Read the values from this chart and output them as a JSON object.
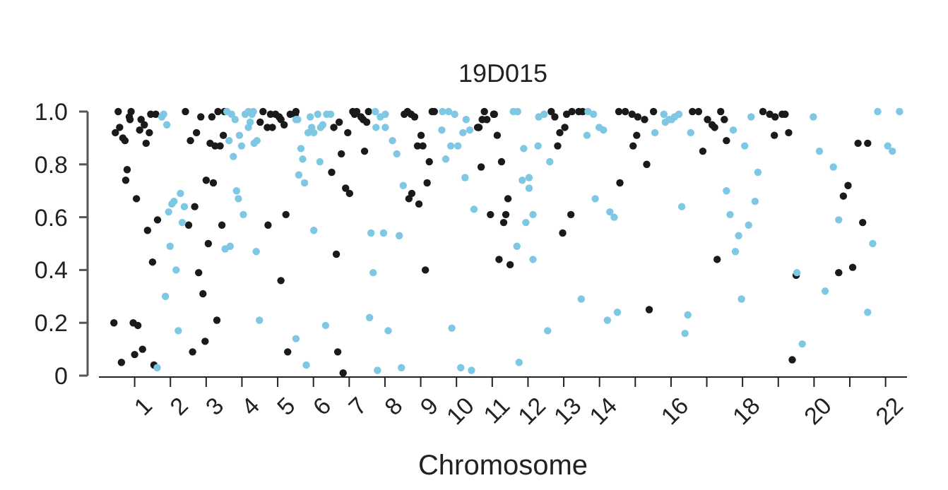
{
  "chart_data": {
    "type": "scatter",
    "title": "19D015",
    "xlabel": "Chromosome",
    "xlim": [
      0,
      22.6
    ],
    "ylim": [
      0,
      1
    ],
    "xticks": [
      1,
      2,
      3,
      4,
      5,
      6,
      7,
      8,
      9,
      10,
      11,
      12,
      13,
      14,
      {
        "value": 15,
        "label": null
      },
      16,
      {
        "value": 17,
        "label": null
      },
      18,
      {
        "value": 19,
        "label": null
      },
      20,
      {
        "value": 21,
        "label": null
      },
      22
    ],
    "yticks": [
      0,
      0.2,
      0.4,
      0.6,
      0.8,
      {
        "value": 1,
        "label": "1.0"
      }
    ],
    "grid": false,
    "marker": "circle",
    "series": [
      {
        "color": "#1a1a1a",
        "x": [
          0.54,
          0.46,
          0.58,
          0.67,
          0.73,
          0.85,
          0.9,
          0.87,
          1.18,
          1.27,
          1.14,
          1.32,
          1.41,
          1.45,
          1.59,
          0.79,
          0.75,
          1.05,
          0.42,
          0.63,
          0.96,
          1.09,
          1.0,
          1.22,
          1.5,
          1.36,
          1.64,
          1.54,
          2.42,
          2.56,
          2.73,
          2.85,
          3.0,
          3.2,
          3.16,
          3.33,
          3.11,
          3.25,
          3.39,
          3.48,
          3.51,
          2.68,
          2.51,
          3.06,
          2.79,
          2.91,
          3.3,
          2.62,
          2.97,
          3.44,
          4.59,
          4.51,
          4.71,
          4.85,
          4.8,
          4.94,
          5.04,
          5.09,
          5.18,
          5.35,
          4.73,
          5.23,
          5.09,
          5.28,
          5.49,
          5.51,
          6.57,
          6.72,
          6.96,
          6.78,
          6.51,
          6.9,
          7.01,
          6.64,
          6.68,
          6.83,
          7.1,
          7.15,
          7.21,
          7.33,
          7.39,
          7.49,
          7.54,
          7.43,
          8.54,
          8.63,
          8.73,
          8.83,
          9.01,
          8.91,
          9.06,
          9.24,
          9.18,
          8.75,
          8.67,
          8.95,
          9.13,
          9.32,
          9.38,
          10.78,
          10.85,
          11.04,
          11.06,
          10.72,
          10.59,
          10.63,
          11.14,
          11.26,
          10.69,
          11.44,
          10.95,
          11.38,
          11.32,
          11.19,
          11.5,
          12.65,
          12.75,
          13.08,
          13.23,
          13.42,
          13.53,
          13.03,
          12.89,
          12.83,
          13.2,
          12.97,
          14.54,
          14.72,
          14.91,
          15.07,
          15.26,
          15.04,
          14.94,
          15.32,
          14.57,
          15.51,
          16.6,
          16.77,
          17.02,
          17.15,
          17.22,
          17.39,
          17.49,
          17.55,
          16.89,
          17.29,
          15.39,
          18.57,
          18.76,
          18.91,
          19.11,
          19.19,
          18.89,
          19.29,
          21.23,
          21.5,
          20.95,
          20.82,
          21.36,
          20.69,
          21.08,
          19.5,
          19.39
        ],
        "values": [
          1,
          0.92,
          0.94,
          0.9,
          0.89,
          0.98,
          1,
          0.97,
          0.97,
          0.95,
          0.93,
          0.88,
          0.92,
          0.99,
          0.99,
          0.78,
          0.74,
          0.67,
          0.2,
          0.05,
          0.2,
          0.19,
          0.08,
          0.1,
          0.43,
          0.55,
          0.59,
          0.04,
          1,
          0.89,
          0.92,
          0.98,
          0.74,
          0.73,
          0.98,
          1,
          0.88,
          0.87,
          0.87,
          0.91,
          1,
          0.64,
          0.57,
          0.5,
          0.39,
          0.31,
          0.21,
          0.09,
          0.13,
          0.57,
          1,
          0.96,
          0.94,
          0.94,
          0.99,
          0.99,
          0.98,
          0.97,
          0.95,
          0.99,
          0.57,
          0.61,
          0.36,
          0.09,
          0.99,
          1,
          0.94,
          0.96,
          0.92,
          0.84,
          0.77,
          0.71,
          0.69,
          0.46,
          0.09,
          0.01,
          1,
          0.99,
          1,
          0.98,
          0.97,
          0.96,
          1,
          0.85,
          0.99,
          1,
          0.99,
          0.98,
          0.91,
          0.87,
          0.87,
          0.81,
          0.73,
          0.69,
          0.67,
          0.65,
          0.4,
          1,
          1,
          1,
          0.97,
          0.99,
          0.99,
          0.97,
          0.94,
          0.94,
          0.91,
          0.81,
          0.79,
          0.67,
          0.61,
          0.61,
          0.58,
          0.44,
          0.42,
          1,
          0.98,
          0.99,
          1,
          1,
          1,
          0.94,
          0.92,
          0.87,
          0.61,
          0.54,
          1,
          1,
          0.99,
          0.98,
          0.97,
          0.91,
          0.87,
          0.8,
          0.73,
          1,
          1,
          1,
          0.97,
          0.95,
          0.94,
          1,
          0.97,
          0.89,
          0.85,
          0.44,
          0.25,
          1,
          0.99,
          0.98,
          0.99,
          0.99,
          0.91,
          0.92,
          0.88,
          0.88,
          0.72,
          0.68,
          0.58,
          0.39,
          0.41,
          0.38,
          0.06
        ]
      },
      {
        "color": "#7ec8e3",
        "x": [
          1.76,
          1.81,
          1.9,
          1.95,
          2.04,
          2.1,
          2.28,
          2.39,
          2.33,
          1.99,
          2.16,
          1.86,
          2.22,
          1.63,
          3.58,
          3.71,
          3.81,
          3.64,
          3.93,
          3.99,
          3.76,
          4.09,
          4.18,
          4.28,
          4.32,
          4.23,
          4.18,
          4.34,
          4.42,
          3.85,
          3.9,
          4.04,
          3.53,
          3.67,
          4.4,
          4.49,
          5.51,
          5.56,
          5.91,
          5.85,
          5.95,
          6.01,
          6.12,
          6.26,
          6.2,
          6.37,
          6.48,
          5.65,
          5.7,
          5.59,
          5.75,
          6.18,
          6.01,
          5.51,
          5.8,
          6.34,
          7.73,
          7.87,
          8.01,
          7.75,
          8.01,
          8.21,
          8.33,
          8.51,
          7.61,
          7.96,
          8.4,
          7.67,
          7.57,
          8.09,
          7.79,
          8.46,
          9.61,
          9.78,
          9.95,
          9.59,
          9.84,
          10.04,
          9.7,
          10.27,
          10.18,
          10.37,
          10.24,
          10.49,
          9.87,
          10.12,
          10.42,
          11.59,
          11.71,
          11.88,
          11.84,
          12.03,
          12.03,
          11.94,
          11.69,
          11.75,
          12.14,
          12.3,
          12.45,
          12.28,
          12.61,
          12.14,
          13.68,
          13.83,
          13.99,
          14.11,
          13.65,
          13.88,
          14.29,
          14.41,
          13.49,
          14.5,
          14.22,
          12.55,
          15.55,
          15.8,
          15.94,
          16.1,
          16.22,
          16.02,
          15.84,
          16.55,
          16.3,
          16.47,
          16.39,
          17.74,
          18.24,
          18.06,
          17.55,
          17.65,
          18.35,
          18.43,
          18.17,
          17.89,
          17.8,
          17.97,
          19.52,
          19.67,
          20.31,
          20.15,
          19.98,
          20.54,
          20.69,
          21.64,
          21.5,
          21.78,
          22.39,
          22.06,
          22.19
        ],
        "values": [
          0.98,
          0.99,
          0.95,
          0.62,
          0.65,
          0.66,
          0.69,
          0.64,
          0.58,
          0.49,
          0.4,
          0.3,
          0.17,
          0.03,
          1,
          0.99,
          0.97,
          0.89,
          0.91,
          0.87,
          0.83,
          0.99,
          1,
          0.99,
          1,
          0.96,
          0.94,
          0.88,
          0.89,
          0.7,
          0.67,
          0.61,
          0.48,
          0.49,
          0.47,
          0.21,
          0.97,
          0.97,
          0.98,
          0.92,
          0.94,
          0.92,
          0.99,
          0.95,
          0.94,
          0.99,
          0.99,
          0.86,
          0.82,
          0.76,
          0.73,
          0.81,
          0.55,
          0.14,
          0.04,
          0.19,
          1,
          0.98,
          0.99,
          0.94,
          0.94,
          0.89,
          0.84,
          0.72,
          0.54,
          0.54,
          0.53,
          0.39,
          0.22,
          0.17,
          0.02,
          0.03,
          1,
          1,
          0.99,
          0.93,
          0.87,
          0.87,
          0.82,
          0.97,
          0.92,
          0.93,
          0.75,
          0.63,
          0.18,
          0.03,
          0.02,
          1,
          1,
          0.86,
          0.74,
          0.75,
          0.71,
          0.58,
          0.49,
          0.05,
          0.44,
          0.98,
          0.99,
          0.87,
          0.81,
          0.61,
          1,
          0.99,
          0.94,
          0.93,
          0.91,
          0.67,
          0.62,
          0.6,
          0.29,
          0.24,
          0.21,
          0.17,
          0.92,
          0.99,
          0.97,
          0.98,
          0.99,
          0.97,
          0.96,
          0.92,
          0.64,
          0.23,
          0.16,
          0.93,
          0.98,
          0.87,
          0.7,
          0.61,
          0.66,
          0.77,
          0.57,
          0.53,
          0.47,
          0.29,
          0.39,
          0.12,
          0.32,
          0.85,
          0.98,
          0.79,
          0.59,
          0.5,
          0.24,
          1,
          1,
          0.87,
          0.85
        ]
      }
    ]
  }
}
